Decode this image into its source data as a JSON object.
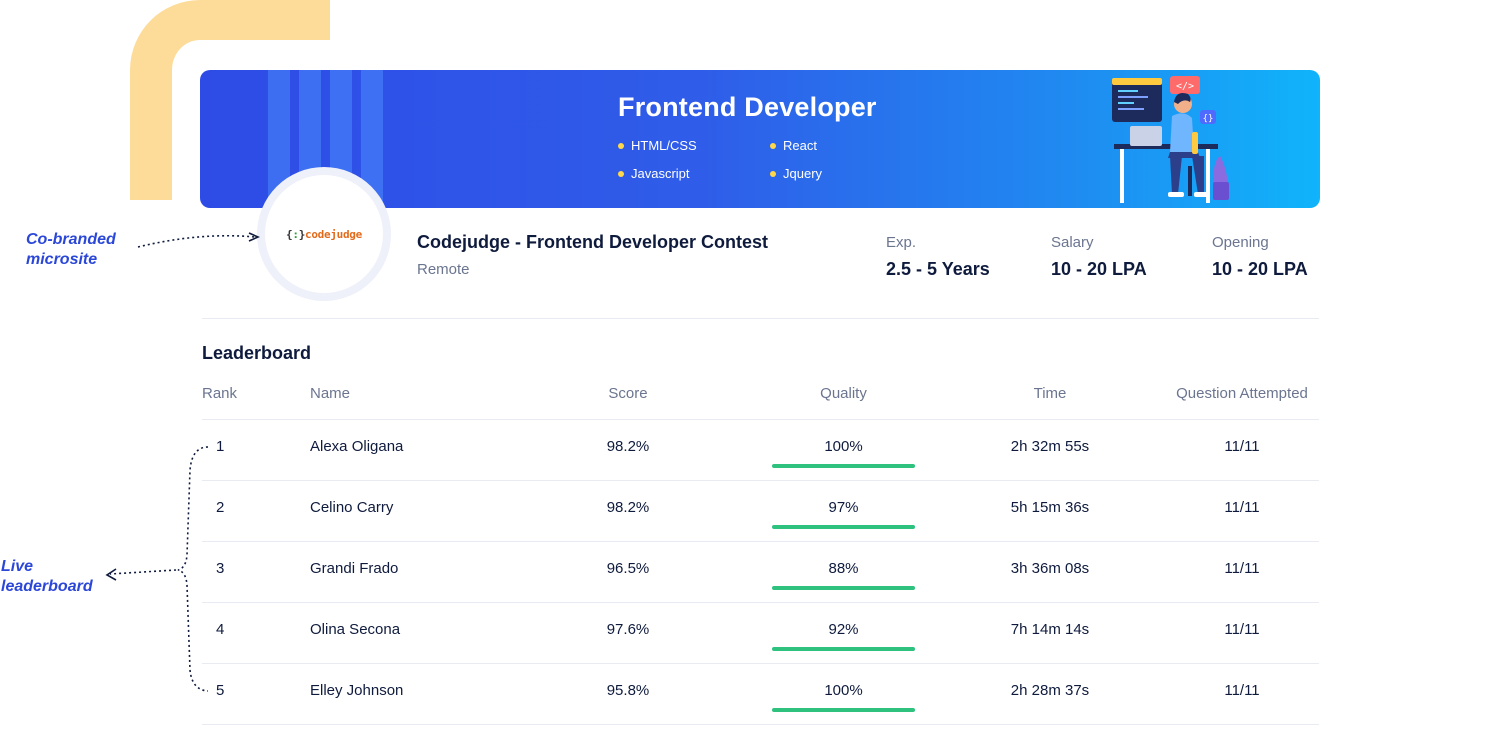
{
  "banner": {
    "title": "Frontend Developer",
    "skills": [
      "HTML/CSS",
      "React",
      "Javascript",
      "Jquery"
    ]
  },
  "logo": {
    "text": "codejudge"
  },
  "contest": {
    "title": "Codejudge - Frontend Developer Contest",
    "location": "Remote",
    "experience": {
      "label": "Exp.",
      "value": "2.5 - 5 Years"
    },
    "salary": {
      "label": "Salary",
      "value": "10 - 20 LPA"
    },
    "opening": {
      "label": "Opening",
      "value": "10 - 20 LPA"
    }
  },
  "leaderboard": {
    "title": "Leaderboard",
    "headers": [
      "Rank",
      "Name",
      "Score",
      "Quality",
      "Time",
      "Question Attempted"
    ],
    "rows": [
      {
        "rank": "1",
        "name": "Alexa Oligana",
        "score": "98.2%",
        "quality": "100%",
        "time": "2h 32m 55s",
        "attempted": "11/11"
      },
      {
        "rank": "2",
        "name": "Celino Carry",
        "score": "98.2%",
        "quality": "97%",
        "time": "5h 15m 36s",
        "attempted": "11/11"
      },
      {
        "rank": "3",
        "name": "Grandi Frado",
        "score": "96.5%",
        "quality": "88%",
        "time": "3h 36m 08s",
        "attempted": "11/11"
      },
      {
        "rank": "4",
        "name": "Olina Secona",
        "score": "97.6%",
        "quality": "92%",
        "time": "7h 14m 14s",
        "attempted": "11/11"
      },
      {
        "rank": "5",
        "name": "Elley Johnson",
        "score": "95.8%",
        "quality": "100%",
        "time": "2h 28m 37s",
        "attempted": "11/11"
      }
    ]
  },
  "annotations": {
    "cobranded_line1": "Co-branded",
    "cobranded_line2": "microsite",
    "live_line1": "Live",
    "live_line2": "leaderboard"
  },
  "colors": {
    "accent": "#2b47d8",
    "quality_bar": "#2ec27e",
    "highlight": "#ffd84a",
    "deco": "#fddc9a"
  }
}
